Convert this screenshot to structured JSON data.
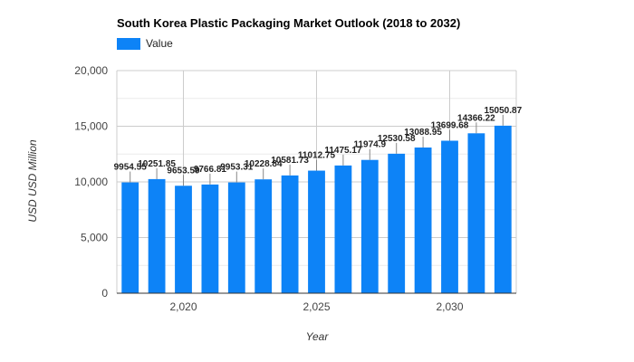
{
  "chart_data": {
    "type": "bar",
    "title": "South Korea Plastic Packaging Market Outlook (2018 to 2032)",
    "xlabel": "Year",
    "ylabel": "USD USD Million",
    "legend": {
      "label": "Value",
      "placement": "top-left"
    },
    "color": "#0d83f7",
    "x": [
      2018,
      2019,
      2020,
      2021,
      2022,
      2023,
      2024,
      2025,
      2026,
      2027,
      2028,
      2029,
      2030,
      2031,
      2032
    ],
    "values": [
      9954.55,
      10251.85,
      9653.59,
      9766.81,
      9953.31,
      10228.84,
      10581.73,
      11012.75,
      11475.17,
      11974.9,
      12530.58,
      13088.95,
      13699.68,
      14366.22,
      15050.87
    ],
    "data_labels": [
      "9954.55",
      "10251.85",
      "9653.59",
      "9766.81",
      "9953.31",
      "10228.84",
      "10581.73",
      "11012.75",
      "11475.17",
      "11974.9",
      "12530.58",
      "13088.95",
      "13699.68",
      "14366.22",
      "15050.87"
    ],
    "ylim": [
      0,
      20000
    ],
    "y_ticks": [
      0,
      5000,
      10000,
      15000,
      20000
    ],
    "y_tick_labels": [
      "0",
      "5,000",
      "10,000",
      "15,000",
      "20,000"
    ],
    "x_ticks": [
      2020,
      2025,
      2030
    ],
    "x_tick_labels": [
      "2,020",
      "2,025",
      "2,030"
    ],
    "grid": true
  }
}
